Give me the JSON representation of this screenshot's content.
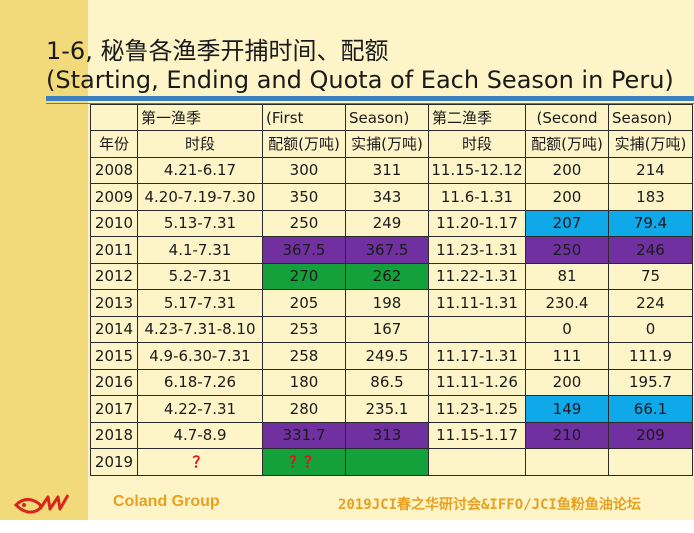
{
  "title": {
    "line1": "1-6, 秘鲁各渔季开捕时间、配额",
    "line2": "(Starting, Ending and Quota of Each Season in Peru)"
  },
  "table": {
    "header1": [
      "",
      "第一渔季",
      "(First",
      "Season)",
      "第二渔季",
      "(Second",
      "Season)"
    ],
    "header2": [
      "年份",
      "时段",
      "配额(万吨)",
      "实捕(万吨)",
      "时段",
      "配额(万吨)",
      "实捕(万吨)"
    ],
    "rows": [
      [
        "2008",
        "4.21-6.17",
        "300",
        "311",
        "11.15-12.12",
        "200",
        "214"
      ],
      [
        "2009",
        "4.20-7.19-7.30",
        "350",
        "343",
        "11.6-1.31",
        "200",
        "183"
      ],
      [
        "2010",
        "5.13-7.31",
        "250",
        "249",
        "11.20-1.17",
        "207",
        "79.4"
      ],
      [
        "2011",
        "4.1-7.31",
        "367.5",
        "367.5",
        "11.23-1.31",
        "250",
        "246"
      ],
      [
        "2012",
        "5.2-7.31",
        "270",
        "262",
        "11.22-1.31",
        "81",
        "75"
      ],
      [
        "2013",
        "5.17-7.31",
        "205",
        "198",
        "11.11-1.31",
        "230.4",
        "224"
      ],
      [
        "2014",
        "4.23-7.31-8.10",
        "253",
        "167",
        "",
        "0",
        "0"
      ],
      [
        "2015",
        "4.9-6.30-7.31",
        "258",
        "249.5",
        "11.17-1.31",
        "111",
        "111.9"
      ],
      [
        "2016",
        "6.18-7.26",
        "180",
        "86.5",
        "11.11-1.26",
        "200",
        "195.7"
      ],
      [
        "2017",
        "4.22-7.31",
        "280",
        "235.1",
        "11.23-1.25",
        "149",
        "66.1"
      ],
      [
        "2018",
        "4.7-8.9",
        "331.7",
        "313",
        "11.15-1.17",
        "210",
        "209"
      ],
      [
        "2019",
        "？",
        "？？",
        "",
        "",
        "",
        ""
      ]
    ],
    "highlight_colors": {
      "purple": "#7030a0",
      "green": "#14a03a",
      "blue": "#0fa8e8"
    },
    "cell_fills": {
      "3": {
        "5": "blue",
        "6": "blue"
      },
      "4": {
        "2": "purple",
        "3": "purple",
        "5": "purple",
        "6": "purple"
      },
      "5": {
        "2": "green",
        "3": "green"
      },
      "10": {
        "5": "blue",
        "6": "blue"
      },
      "11": {
        "2": "purple",
        "3": "purple",
        "5": "purple",
        "6": "purple"
      },
      "12": {
        "2": "green",
        "3": "green"
      }
    },
    "red_cells": {
      "12": [
        1,
        2
      ]
    }
  },
  "footer": {
    "company": "Coland Group",
    "event": "2019JCI春之华研讨会&IFFO/JCI鱼粉鱼油论坛"
  },
  "colors": {
    "sidebar": "#f2d97a",
    "background": "#fdf5c8",
    "rule": "#3a7fc0",
    "footer_text": "#e8a020",
    "logo": "#d8261c"
  },
  "icons": {
    "logo": "coland-fish-logo"
  }
}
